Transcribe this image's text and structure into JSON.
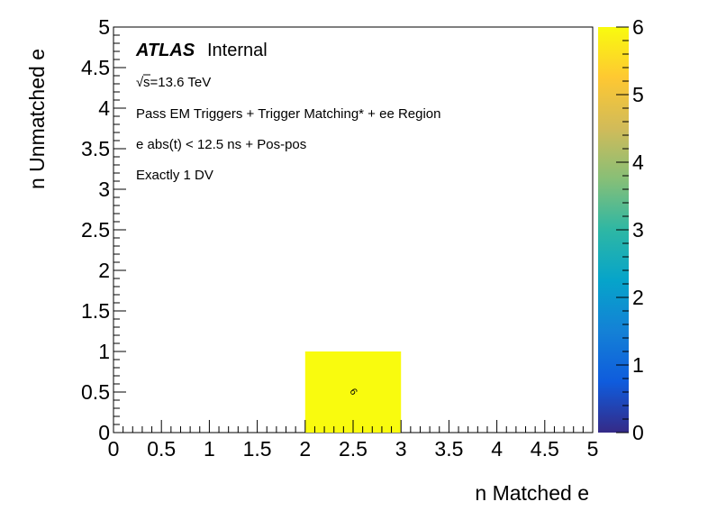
{
  "chart_data": {
    "type": "heatmap",
    "xlabel": "n Matched e",
    "ylabel": "n Unmatched e",
    "xlim": [
      0,
      5
    ],
    "ylim": [
      0,
      5
    ],
    "x_ticks": [
      "0",
      "0.5",
      "1",
      "1.5",
      "2",
      "2.5",
      "3",
      "3.5",
      "4",
      "4.5",
      "5"
    ],
    "y_ticks": [
      "0",
      "0.5",
      "1",
      "1.5",
      "2",
      "2.5",
      "3",
      "3.5",
      "4",
      "4.5",
      "5"
    ],
    "z_range": [
      0,
      6
    ],
    "z_ticks": [
      "0",
      "1",
      "2",
      "3",
      "4",
      "5",
      "6"
    ],
    "colormap": [
      "#352a87",
      "#0f5cdd",
      "#1481d6",
      "#06a4ca",
      "#2eb7a4",
      "#87bf77",
      "#d1bb59",
      "#fec832",
      "#f9fb0e"
    ],
    "bins": [
      {
        "x0": 2,
        "x1": 3,
        "y0": 0,
        "y1": 1,
        "value": 6,
        "label": "6"
      }
    ],
    "annotations": {
      "atlas": "ATLAS",
      "internal": "Internal",
      "sqrt": "√",
      "energy": "s=13.6 TeV",
      "line1": "Pass EM Triggers + Trigger Matching* + ee Region",
      "line2": "e abs(t) < 12.5 ns + Pos-pos",
      "line3": "Exactly 1 DV"
    },
    "grid": false
  }
}
